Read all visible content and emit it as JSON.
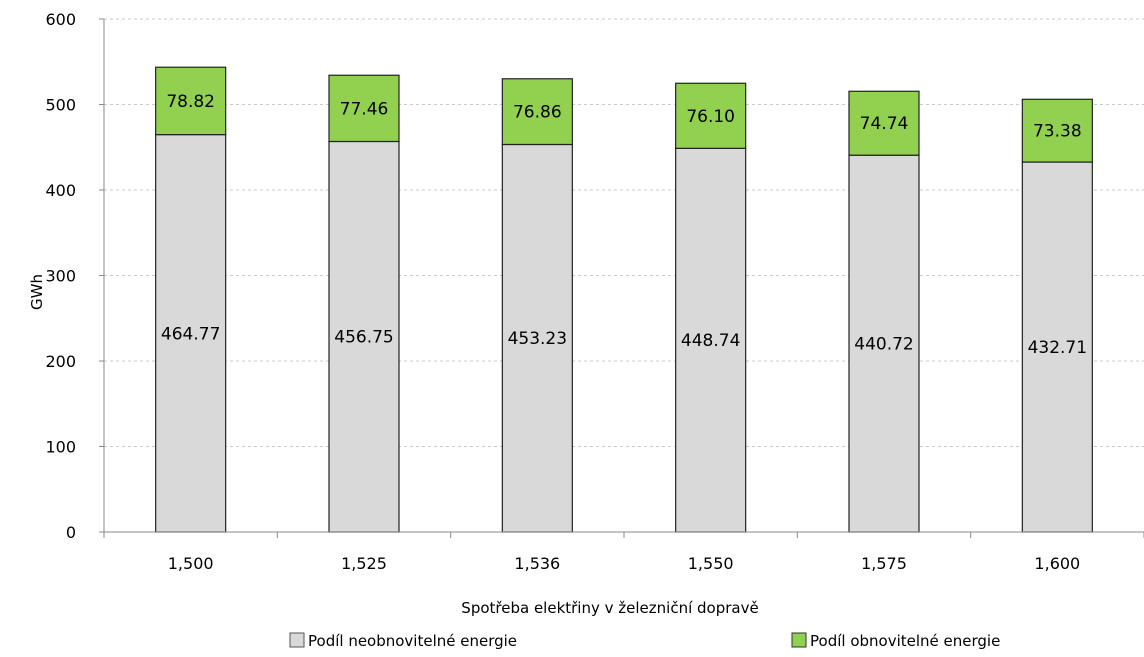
{
  "chart_data": {
    "type": "bar",
    "stacked": true,
    "categories": [
      "1,500",
      "1,525",
      "1,536",
      "1,550",
      "1,575",
      "1,600"
    ],
    "series": [
      {
        "name": "Podíl neobnovitelné energie",
        "values": [
          464.77,
          456.75,
          453.23,
          448.74,
          440.72,
          432.71
        ],
        "labels": [
          "464.77",
          "456.75",
          "453.23",
          "448.74",
          "440.72",
          "432.71"
        ],
        "color": "#d9d9d9"
      },
      {
        "name": "Podíl obnovitelné energie",
        "values": [
          78.82,
          77.46,
          76.86,
          76.1,
          74.74,
          73.38
        ],
        "labels": [
          "78.82",
          "77.46",
          "76.86",
          "76.10",
          "74.74",
          "73.38"
        ],
        "color": "#92d050"
      }
    ],
    "title": "",
    "xlabel": "Spotřeba elektřiny v železniční dopravě",
    "ylabel": "GWh",
    "ylim": [
      0,
      600
    ],
    "yticks": [
      "0",
      "100",
      "200",
      "300",
      "400",
      "500",
      "600"
    ],
    "grid": true,
    "legend_position": "bottom"
  }
}
